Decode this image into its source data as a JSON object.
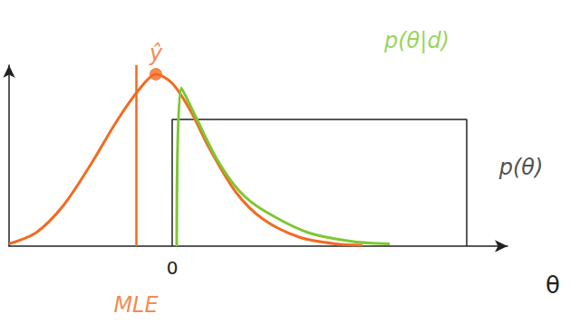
{
  "chart_data": {
    "type": "line",
    "x_label": "θ",
    "xlim": [
      -3.6,
      7.4
    ],
    "xticks": [
      0
    ],
    "ylim": [
      0,
      4
    ],
    "tick_labels": "x",
    "grid": false,
    "series": [
      {
        "type": "line",
        "color": "#f26b21",
        "line_style": "solid",
        "x": [
          -3.6,
          -3.0,
          -2.4,
          -1.8,
          -1.2,
          -0.7,
          -0.36,
          0.0,
          0.4,
          0.8,
          1.4,
          2.0,
          2.8,
          3.6,
          4.2
        ],
        "values": [
          0.05,
          0.3,
          0.9,
          1.8,
          2.8,
          3.5,
          3.8,
          3.6,
          3.0,
          2.2,
          1.2,
          0.6,
          0.2,
          0.05,
          0.02
        ]
      },
      {
        "type": "line",
        "color": "#222222",
        "line_style": "solid",
        "x": [
          0,
          0,
          6.5,
          6.5
        ],
        "values": [
          0,
          2.8,
          2.8,
          0
        ]
      },
      {
        "type": "line",
        "color": "#7dc832",
        "line_style": "solid",
        "x": [
          0.1,
          0.2,
          0.5,
          1.0,
          1.5,
          2.0,
          3.0,
          4.0,
          4.8
        ],
        "values": [
          0,
          3.5,
          2.9,
          1.9,
          1.2,
          0.8,
          0.3,
          0.1,
          0.05
        ]
      }
    ],
    "annotations": [
      {
        "text": "ŷ",
        "x": -0.36,
        "y": 3.8,
        "color": "#f26b21",
        "marker": "circle"
      },
      {
        "text": "MLE",
        "x": -0.8,
        "y": -1.3,
        "color": "#f26b21",
        "line_style": "solid"
      },
      {
        "text": "p(θ|d)",
        "x": 5.4,
        "y": 4.54,
        "color": "#7dc832"
      },
      {
        "text": "p(θ)",
        "x": 7.7,
        "y": 1.74,
        "color": "#222222"
      }
    ]
  }
}
